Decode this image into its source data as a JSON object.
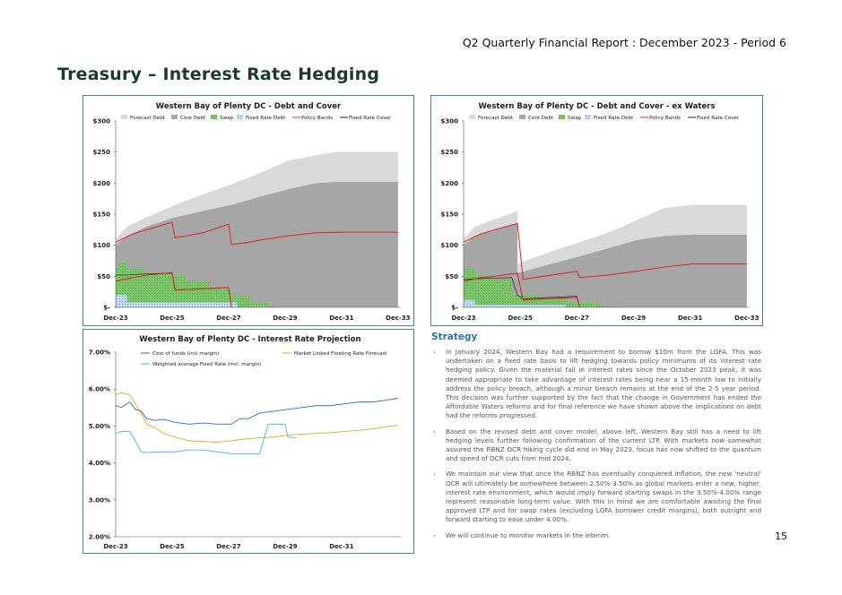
{
  "header": {
    "report_title": "Q2 Quarterly Financial Report : December 2023 - Period 6"
  },
  "page_title": "Treasury – Interest Rate Hedging",
  "page_number": "15",
  "colors": {
    "accent": "#2e6fb0",
    "title": "#1a3b2c",
    "border": "#4a7fb5",
    "forecast": "#d9d9d9",
    "core": "#a6a6a6",
    "swap": "#7cc56a",
    "fixed": "#c5dcf5",
    "policy": "#e02020",
    "cover": "#222222"
  },
  "chart_data": [
    {
      "type": "area",
      "title": "Western Bay of Plenty DC - Debt and Cover",
      "legend": [
        "Forecast Debt",
        "Core Debt",
        "Swap",
        "Fixed Rate Debt",
        "Policy Bands",
        "Fixed Rate Cover"
      ],
      "x_ticks": [
        "Dec-23",
        "Dec-25",
        "Dec-27",
        "Dec-29",
        "Dec-31",
        "Dec-33"
      ],
      "y_ticks": [
        "$-",
        "$50",
        "$100",
        "$150",
        "$200",
        "$250",
        "$300"
      ],
      "ylim": [
        0,
        300
      ],
      "xlim": [
        2023.9,
        2034.0
      ],
      "series": [
        {
          "name": "Forecast Debt",
          "x": [
            2023.9,
            2024.3,
            2025,
            2026,
            2027,
            2028,
            2029,
            2030,
            2031,
            2031.7,
            2032,
            2033,
            2033.9
          ],
          "y": [
            110,
            130,
            145,
            165,
            182,
            198,
            216,
            236,
            245,
            250,
            250,
            250,
            250
          ]
        },
        {
          "name": "Core Debt",
          "x": [
            2023.9,
            2024.3,
            2025,
            2026,
            2027,
            2028,
            2029,
            2030,
            2031,
            2031.7,
            2032,
            2033,
            2033.9
          ],
          "y": [
            100,
            115,
            130,
            145,
            155,
            165,
            178,
            190,
            200,
            202,
            202,
            202,
            202
          ]
        },
        {
          "name": "Swap",
          "x": [
            2023.9,
            2024.0,
            2024.0,
            2024.3,
            2024.3,
            2024.9,
            2024.9,
            2025.7,
            2025.7,
            2026.4,
            2026.4,
            2027.2,
            2027.2,
            2028.0,
            2028.0,
            2028.7,
            2028.7,
            2029.3,
            2029.3,
            2029.6
          ],
          "y": [
            62,
            62,
            72,
            72,
            62,
            62,
            56,
            56,
            52,
            52,
            42,
            42,
            30,
            30,
            18,
            18,
            8,
            8,
            2,
            0
          ]
        },
        {
          "name": "Fixed Rate Debt",
          "x": [
            2023.9,
            2024.3,
            2024.3,
            2028.2,
            2028.2
          ],
          "y": [
            20,
            20,
            8,
            8,
            0
          ]
        },
        {
          "name": "Policy Bands Upper",
          "x": [
            2023.9,
            2024.5,
            2025,
            2025.9,
            2026,
            2026.5,
            2027,
            2027.9,
            2028,
            2028.5,
            2029,
            2030,
            2031,
            2032,
            2033.9
          ],
          "y": [
            105,
            118,
            125,
            137,
            112,
            116,
            120,
            134,
            101,
            104,
            108,
            115,
            120,
            121,
            121
          ]
        },
        {
          "name": "Policy Bands Lower",
          "x": [
            2023.9,
            2024.5,
            2025,
            2025.9,
            2026,
            2027,
            2027.9,
            2028
          ],
          "y": [
            42,
            48,
            52,
            56,
            28,
            30,
            32,
            0
          ]
        },
        {
          "name": "Fixed Rate Cover",
          "x": [
            2023.9,
            2024.3,
            2025,
            2025.9,
            2026,
            2027,
            2027.9,
            2028
          ],
          "y": [
            52,
            52,
            54,
            55,
            28,
            30,
            32,
            0
          ]
        }
      ]
    },
    {
      "type": "area",
      "title": "Western Bay of Plenty DC - Debt and Cover - ex Waters",
      "legend": [
        "Forecast Debt",
        "Core Debt",
        "Swap",
        "Fixed Rate Debt",
        "Policy Bands",
        "Fixed Rate Cover"
      ],
      "x_ticks": [
        "Dec-23",
        "Dec-25",
        "Dec-27",
        "Dec-29",
        "Dec-31",
        "Dec-33"
      ],
      "y_ticks": [
        "$-",
        "$50",
        "$100",
        "$150",
        "$200",
        "$250",
        "$300"
      ],
      "ylim": [
        0,
        300
      ],
      "xlim": [
        2023.9,
        2034.0
      ],
      "series": [
        {
          "name": "Forecast Debt",
          "x": [
            2023.9,
            2024.3,
            2025.8,
            2025.8,
            2027,
            2028,
            2029,
            2030,
            2031,
            2032,
            2033,
            2033.9
          ],
          "y": [
            110,
            130,
            155,
            70,
            90,
            105,
            120,
            140,
            160,
            165,
            165,
            165
          ]
        },
        {
          "name": "Core Debt",
          "x": [
            2023.9,
            2024.3,
            2025.8,
            2025.8,
            2027,
            2028,
            2029,
            2030,
            2031,
            2032,
            2033,
            2033.9
          ],
          "y": [
            100,
            115,
            135,
            55,
            70,
            82,
            95,
            108,
            115,
            117,
            117,
            117
          ]
        },
        {
          "name": "Swap",
          "x": [
            2023.9,
            2024.3,
            2024.3,
            2024.9,
            2024.9,
            2025.6,
            2025.6,
            2026.6,
            2026.6,
            2027.6,
            2027.6,
            2028.6,
            2028.6,
            2029.6
          ],
          "y": [
            62,
            62,
            52,
            52,
            45,
            45,
            20,
            20,
            15,
            15,
            8,
            8,
            2,
            0
          ]
        },
        {
          "name": "Fixed Rate Debt",
          "x": [
            2023.9,
            2024.3,
            2024.3,
            2027.5,
            2027.5
          ],
          "y": [
            12,
            12,
            4,
            4,
            0
          ]
        },
        {
          "name": "Policy Bands Upper",
          "x": [
            2023.9,
            2024.5,
            2025,
            2025.8,
            2026,
            2027,
            2027.9,
            2028,
            2029,
            2030,
            2031,
            2032,
            2033.9
          ],
          "y": [
            105,
            118,
            125,
            135,
            45,
            52,
            58,
            48,
            52,
            58,
            65,
            70,
            70
          ]
        },
        {
          "name": "Policy Bands Lower",
          "x": [
            2023.9,
            2024.5,
            2025,
            2025.8,
            2026,
            2027,
            2027.9,
            2028
          ],
          "y": [
            42,
            48,
            50,
            55,
            12,
            14,
            16,
            0
          ]
        },
        {
          "name": "Fixed Rate Cover",
          "x": [
            2023.9,
            2024.3,
            2025,
            2025.6,
            2025.8,
            2026,
            2027,
            2027.9,
            2028
          ],
          "y": [
            45,
            46,
            47,
            48,
            20,
            14,
            16,
            18,
            0
          ]
        }
      ]
    },
    {
      "type": "line",
      "title": "Western Bay of Plenty DC - Interest Rate Projection",
      "legend": [
        "Cost of funds (incl margin)",
        "Market Linked Floating Rate Forecast",
        "Weighted average Fixed Rate (incl. margin)"
      ],
      "x_ticks": [
        "Dec-23",
        "Dec-25",
        "Dec-27",
        "Dec-29",
        "Dec-31"
      ],
      "y_ticks": [
        "2.00%",
        "3.00%",
        "4.00%",
        "5.00%",
        "6.00%",
        "7.00%"
      ],
      "ylim": [
        2.0,
        7.0
      ],
      "xlim": [
        2023.9,
        2034.0
      ],
      "series": [
        {
          "name": "Cost of funds (incl margin)",
          "color": "#2e6fb0",
          "x": [
            2023.9,
            2024.1,
            2024.4,
            2024.6,
            2024.8,
            2025,
            2025.3,
            2025.6,
            2026,
            2026.5,
            2027,
            2027.5,
            2028,
            2028.3,
            2028.6,
            2029,
            2029.5,
            2030,
            2030.5,
            2031,
            2031.5,
            2032,
            2032.5,
            2033,
            2033.5,
            2033.9
          ],
          "y": [
            5.55,
            5.5,
            5.65,
            5.45,
            5.4,
            5.2,
            5.15,
            5.18,
            5.1,
            5.05,
            5.08,
            5.05,
            5.05,
            5.2,
            5.2,
            5.35,
            5.4,
            5.45,
            5.5,
            5.55,
            5.55,
            5.6,
            5.65,
            5.65,
            5.7,
            5.75
          ]
        },
        {
          "name": "Market Linked Floating Rate Forecast",
          "color": "#e0a820",
          "x": [
            2023.9,
            2024.1,
            2024.4,
            2024.6,
            2024.8,
            2025,
            2025.3,
            2025.6,
            2026,
            2026.5,
            2027,
            2027.5,
            2028,
            2028.5,
            2029,
            2029.5,
            2030,
            2030.5,
            2031,
            2031.5,
            2032,
            2032.5,
            2033,
            2033.5,
            2033.9
          ],
          "y": [
            5.85,
            5.9,
            5.85,
            5.6,
            5.35,
            5.05,
            4.95,
            4.8,
            4.7,
            4.6,
            4.58,
            4.56,
            4.6,
            4.65,
            4.68,
            4.7,
            4.75,
            4.78,
            4.8,
            4.82,
            4.85,
            4.88,
            4.92,
            4.98,
            5.02
          ]
        },
        {
          "name": "Weighted average Fixed Rate (incl. margin)",
          "color": "#3fb8e8",
          "x": [
            2023.9,
            2024.1,
            2024.4,
            2024.6,
            2024.8,
            2025,
            2025.5,
            2026,
            2026.5,
            2027,
            2027.5,
            2028,
            2028.3,
            2028.6,
            2029,
            2029.3,
            2029.6,
            2029.9,
            2030.0,
            2030.3
          ],
          "y": [
            4.8,
            4.85,
            4.85,
            4.6,
            4.3,
            4.28,
            4.3,
            4.3,
            4.35,
            4.35,
            4.3,
            4.25,
            4.25,
            4.25,
            4.25,
            5.05,
            5.05,
            5.05,
            4.7,
            4.68
          ]
        }
      ]
    }
  ],
  "strategy": {
    "heading": "Strategy",
    "bullets": [
      "In January 2024, Western Bay had a requirement to borrow $10m from the LGFA. This was undertaken on a fixed rate basis to lift hedging towards policy minimums of its interest rate hedging policy. Given the material fall in interest rates since the October 2023 peak, it was deemed appropriate to take advantage of interest rates being near a 15-month low to initially address the policy breach, although a minor breach remains at the end of the 2-5 year period. This decision was further supported by the fact that the change in Government has ended the Affordable Waters reforms and for final reference we have shown above the implications on debt had the reforms progressed.",
      "Based on the revised debt and cover model, above left, Western Bay still has a need to lift hedging levels further following confirmation of the current LTP. With markets now somewhat assured the RBNZ OCR hiking cycle did end in May 2023, focus has now shifted to the quantum and speed of OCR cuts from mid 2024.",
      "We maintain our view that once the RBNZ has eventually conquered inflation, the new 'neutral' OCR will ultimately be somewhere between 2.50%-3.50% as global markets enter a new, higher, interest rate environment, which would imply forward starting swaps in the 3.50%-4.00% range represent reasonable long-term value. With this in mind we are comfortable awaiting the final approved LTP and for swap rates (excluding LGFA borrower credit margins), both outright and forward starting to ease under 4.00%.",
      "We will continue to monitor markets in the interim."
    ]
  }
}
